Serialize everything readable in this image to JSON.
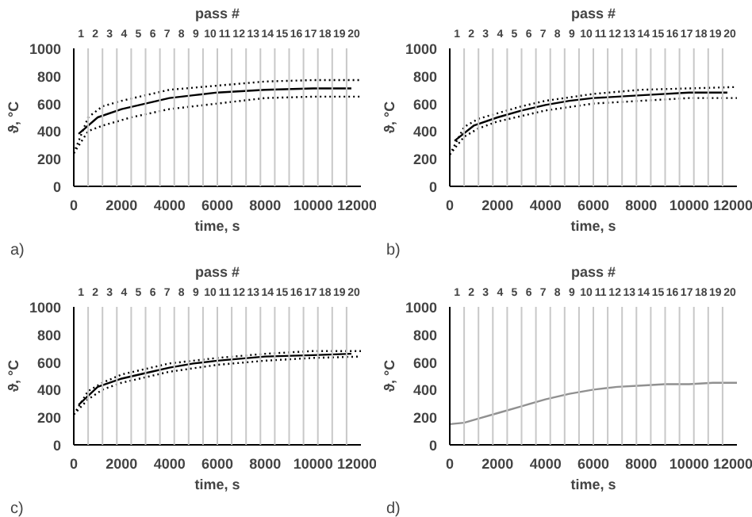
{
  "chart_data": [
    {
      "type": "line",
      "xlabel": "time, s",
      "ylabel": "ϑ, °C",
      "x2label": "pass #",
      "annotations": [
        "a)"
      ],
      "xlim": [
        0,
        12000
      ],
      "xticks": [
        0,
        2000,
        4000,
        6000,
        8000,
        10000,
        12000
      ],
      "ylim": [
        0,
        1000
      ],
      "yticks": [
        0,
        200,
        400,
        600,
        800,
        1000
      ],
      "x2lim": [
        0.5,
        20.5
      ],
      "x2ticks": [
        1,
        2,
        3,
        4,
        5,
        6,
        7,
        8,
        9,
        10,
        11,
        12,
        13,
        14,
        15,
        16,
        17,
        18,
        19,
        20
      ],
      "ref_lines": [
        {
          "axis": "x",
          "value": 600,
          "color": "#c8c8c8"
        },
        {
          "axis": "x",
          "value": 1200,
          "color": "#c8c8c8"
        },
        {
          "axis": "x",
          "value": 1800,
          "color": "#c8c8c8"
        },
        {
          "axis": "x",
          "value": 2400,
          "color": "#c8c8c8"
        },
        {
          "axis": "x",
          "value": 3000,
          "color": "#c8c8c8"
        },
        {
          "axis": "x",
          "value": 3600,
          "color": "#c8c8c8"
        },
        {
          "axis": "x",
          "value": 4200,
          "color": "#c8c8c8"
        },
        {
          "axis": "x",
          "value": 4800,
          "color": "#c8c8c8"
        },
        {
          "axis": "x",
          "value": 5400,
          "color": "#c8c8c8"
        },
        {
          "axis": "x",
          "value": 6000,
          "color": "#c8c8c8"
        },
        {
          "axis": "x",
          "value": 6600,
          "color": "#c8c8c8"
        },
        {
          "axis": "x",
          "value": 7200,
          "color": "#c8c8c8"
        },
        {
          "axis": "x",
          "value": 7800,
          "color": "#c8c8c8"
        },
        {
          "axis": "x",
          "value": 8400,
          "color": "#c8c8c8"
        },
        {
          "axis": "x",
          "value": 9000,
          "color": "#c8c8c8"
        },
        {
          "axis": "x",
          "value": 9600,
          "color": "#c8c8c8"
        },
        {
          "axis": "x",
          "value": 10200,
          "color": "#c8c8c8"
        },
        {
          "axis": "x",
          "value": 10800,
          "color": "#c8c8c8"
        },
        {
          "axis": "x",
          "value": 11400,
          "color": "#c8c8c8"
        }
      ],
      "series": [
        {
          "color": "#000000",
          "line_style": "solid",
          "x": [
            200,
            1000,
            2000,
            3000,
            4000,
            5000,
            6000,
            8000,
            10000,
            11600
          ],
          "values": [
            380,
            500,
            560,
            600,
            640,
            660,
            680,
            700,
            710,
            710
          ]
        },
        {
          "color": "#000000",
          "line_style": "dotted",
          "x": [
            0,
            600,
            1200,
            2000,
            3000,
            4000,
            6000,
            8000,
            10000,
            12000
          ],
          "values": [
            240,
            500,
            580,
            620,
            660,
            700,
            730,
            760,
            770,
            770
          ]
        },
        {
          "color": "#000000",
          "line_style": "dotted",
          "x": [
            0,
            600,
            1200,
            2400,
            4000,
            6000,
            8000,
            10000,
            12000
          ],
          "values": [
            240,
            400,
            440,
            500,
            560,
            600,
            640,
            650,
            650
          ]
        }
      ]
    },
    {
      "type": "line",
      "xlabel": "time, s",
      "ylabel": "ϑ, °C",
      "x2label": "pass #",
      "annotations": [
        "b)"
      ],
      "xlim": [
        0,
        12000
      ],
      "xticks": [
        0,
        2000,
        4000,
        6000,
        8000,
        10000,
        12000
      ],
      "ylim": [
        0,
        1000
      ],
      "yticks": [
        0,
        200,
        400,
        600,
        800,
        1000
      ],
      "x2lim": [
        0.5,
        20.5
      ],
      "x2ticks": [
        1,
        2,
        3,
        4,
        5,
        6,
        7,
        8,
        9,
        10,
        11,
        12,
        13,
        14,
        15,
        16,
        17,
        18,
        19,
        20
      ],
      "ref_lines": [
        {
          "axis": "x",
          "value": 600,
          "color": "#c8c8c8"
        },
        {
          "axis": "x",
          "value": 1200,
          "color": "#c8c8c8"
        },
        {
          "axis": "x",
          "value": 1800,
          "color": "#c8c8c8"
        },
        {
          "axis": "x",
          "value": 2400,
          "color": "#c8c8c8"
        },
        {
          "axis": "x",
          "value": 3000,
          "color": "#c8c8c8"
        },
        {
          "axis": "x",
          "value": 3600,
          "color": "#c8c8c8"
        },
        {
          "axis": "x",
          "value": 4200,
          "color": "#c8c8c8"
        },
        {
          "axis": "x",
          "value": 4800,
          "color": "#c8c8c8"
        },
        {
          "axis": "x",
          "value": 5400,
          "color": "#c8c8c8"
        },
        {
          "axis": "x",
          "value": 6000,
          "color": "#c8c8c8"
        },
        {
          "axis": "x",
          "value": 6600,
          "color": "#c8c8c8"
        },
        {
          "axis": "x",
          "value": 7200,
          "color": "#c8c8c8"
        },
        {
          "axis": "x",
          "value": 7800,
          "color": "#c8c8c8"
        },
        {
          "axis": "x",
          "value": 8400,
          "color": "#c8c8c8"
        },
        {
          "axis": "x",
          "value": 9000,
          "color": "#c8c8c8"
        },
        {
          "axis": "x",
          "value": 9600,
          "color": "#c8c8c8"
        },
        {
          "axis": "x",
          "value": 10200,
          "color": "#c8c8c8"
        },
        {
          "axis": "x",
          "value": 10800,
          "color": "#c8c8c8"
        },
        {
          "axis": "x",
          "value": 11400,
          "color": "#c8c8c8"
        }
      ],
      "series": [
        {
          "color": "#000000",
          "line_style": "solid",
          "x": [
            200,
            1000,
            2000,
            3000,
            4000,
            5000,
            6000,
            8000,
            10000,
            11600
          ],
          "values": [
            330,
            440,
            500,
            550,
            590,
            620,
            640,
            660,
            680,
            680
          ]
        },
        {
          "color": "#000000",
          "line_style": "dotted",
          "x": [
            0,
            600,
            1200,
            2000,
            3000,
            4000,
            6000,
            8000,
            10000,
            12000
          ],
          "values": [
            230,
            430,
            490,
            530,
            580,
            620,
            670,
            700,
            710,
            720
          ]
        },
        {
          "color": "#000000",
          "line_style": "dotted",
          "x": [
            0,
            600,
            1200,
            2000,
            3000,
            4000,
            6000,
            8000,
            10000,
            12000
          ],
          "values": [
            230,
            360,
            420,
            470,
            510,
            550,
            600,
            620,
            640,
            640
          ]
        }
      ]
    },
    {
      "type": "line",
      "xlabel": "time, s",
      "ylabel": "ϑ, °C",
      "x2label": "pass #",
      "annotations": [
        "c)"
      ],
      "xlim": [
        0,
        12000
      ],
      "xticks": [
        0,
        2000,
        4000,
        6000,
        8000,
        10000,
        12000
      ],
      "ylim": [
        0,
        1000
      ],
      "yticks": [
        0,
        200,
        400,
        600,
        800,
        1000
      ],
      "x2lim": [
        0.5,
        20.5
      ],
      "x2ticks": [
        1,
        2,
        3,
        4,
        5,
        6,
        7,
        8,
        9,
        10,
        11,
        12,
        13,
        14,
        15,
        16,
        17,
        18,
        19,
        20
      ],
      "ref_lines": [
        {
          "axis": "x",
          "value": 600,
          "color": "#c8c8c8"
        },
        {
          "axis": "x",
          "value": 1200,
          "color": "#c8c8c8"
        },
        {
          "axis": "x",
          "value": 1800,
          "color": "#c8c8c8"
        },
        {
          "axis": "x",
          "value": 2400,
          "color": "#c8c8c8"
        },
        {
          "axis": "x",
          "value": 3000,
          "color": "#c8c8c8"
        },
        {
          "axis": "x",
          "value": 3600,
          "color": "#c8c8c8"
        },
        {
          "axis": "x",
          "value": 4200,
          "color": "#c8c8c8"
        },
        {
          "axis": "x",
          "value": 4800,
          "color": "#c8c8c8"
        },
        {
          "axis": "x",
          "value": 5400,
          "color": "#c8c8c8"
        },
        {
          "axis": "x",
          "value": 6000,
          "color": "#c8c8c8"
        },
        {
          "axis": "x",
          "value": 6600,
          "color": "#c8c8c8"
        },
        {
          "axis": "x",
          "value": 7200,
          "color": "#c8c8c8"
        },
        {
          "axis": "x",
          "value": 7800,
          "color": "#c8c8c8"
        },
        {
          "axis": "x",
          "value": 8400,
          "color": "#c8c8c8"
        },
        {
          "axis": "x",
          "value": 9000,
          "color": "#c8c8c8"
        },
        {
          "axis": "x",
          "value": 9600,
          "color": "#c8c8c8"
        },
        {
          "axis": "x",
          "value": 10200,
          "color": "#c8c8c8"
        },
        {
          "axis": "x",
          "value": 10800,
          "color": "#c8c8c8"
        },
        {
          "axis": "x",
          "value": 11400,
          "color": "#c8c8c8"
        }
      ],
      "series": [
        {
          "color": "#000000",
          "line_style": "solid",
          "x": [
            200,
            1000,
            2000,
            3000,
            4000,
            5000,
            6000,
            8000,
            10000,
            11600
          ],
          "values": [
            290,
            420,
            480,
            520,
            560,
            590,
            610,
            640,
            650,
            660
          ]
        },
        {
          "color": "#000000",
          "line_style": "dotted",
          "x": [
            0,
            600,
            1200,
            2000,
            3000,
            4000,
            6000,
            8000,
            10000,
            12000
          ],
          "values": [
            220,
            390,
            450,
            510,
            550,
            590,
            630,
            660,
            680,
            680
          ]
        },
        {
          "color": "#000000",
          "line_style": "dotted",
          "x": [
            0,
            600,
            1200,
            2000,
            3000,
            4000,
            6000,
            8000,
            10000,
            12000
          ],
          "values": [
            220,
            330,
            400,
            450,
            490,
            530,
            580,
            610,
            630,
            640
          ]
        }
      ]
    },
    {
      "type": "line",
      "xlabel": "time, s",
      "ylabel": "ϑ, °C",
      "x2label": "pass #",
      "annotations": [
        "d)"
      ],
      "xlim": [
        0,
        12000
      ],
      "xticks": [
        0,
        2000,
        4000,
        6000,
        8000,
        10000,
        12000
      ],
      "ylim": [
        0,
        1000
      ],
      "yticks": [
        0,
        200,
        400,
        600,
        800,
        1000
      ],
      "x2lim": [
        0.5,
        20.5
      ],
      "x2ticks": [
        1,
        2,
        3,
        4,
        5,
        6,
        7,
        8,
        9,
        10,
        11,
        12,
        13,
        14,
        15,
        16,
        17,
        18,
        19,
        20
      ],
      "ref_lines": [
        {
          "axis": "x",
          "value": 600,
          "color": "#c8c8c8"
        },
        {
          "axis": "x",
          "value": 1200,
          "color": "#c8c8c8"
        },
        {
          "axis": "x",
          "value": 1800,
          "color": "#c8c8c8"
        },
        {
          "axis": "x",
          "value": 2400,
          "color": "#c8c8c8"
        },
        {
          "axis": "x",
          "value": 3000,
          "color": "#c8c8c8"
        },
        {
          "axis": "x",
          "value": 3600,
          "color": "#c8c8c8"
        },
        {
          "axis": "x",
          "value": 4200,
          "color": "#c8c8c8"
        },
        {
          "axis": "x",
          "value": 4800,
          "color": "#c8c8c8"
        },
        {
          "axis": "x",
          "value": 5400,
          "color": "#c8c8c8"
        },
        {
          "axis": "x",
          "value": 6000,
          "color": "#c8c8c8"
        },
        {
          "axis": "x",
          "value": 6600,
          "color": "#c8c8c8"
        },
        {
          "axis": "x",
          "value": 7200,
          "color": "#c8c8c8"
        },
        {
          "axis": "x",
          "value": 7800,
          "color": "#c8c8c8"
        },
        {
          "axis": "x",
          "value": 8400,
          "color": "#c8c8c8"
        },
        {
          "axis": "x",
          "value": 9000,
          "color": "#c8c8c8"
        },
        {
          "axis": "x",
          "value": 9600,
          "color": "#c8c8c8"
        },
        {
          "axis": "x",
          "value": 10200,
          "color": "#c8c8c8"
        },
        {
          "axis": "x",
          "value": 10800,
          "color": "#c8c8c8"
        },
        {
          "axis": "x",
          "value": 11400,
          "color": "#c8c8c8"
        }
      ],
      "series": [
        {
          "color": "#909090",
          "line_style": "solid",
          "x": [
            0,
            600,
            1200,
            2000,
            3000,
            4000,
            5000,
            6000,
            7000,
            8000,
            9000,
            10000,
            11000,
            12000
          ],
          "values": [
            150,
            160,
            190,
            230,
            280,
            330,
            370,
            400,
            420,
            430,
            440,
            440,
            450,
            450
          ]
        }
      ]
    }
  ]
}
